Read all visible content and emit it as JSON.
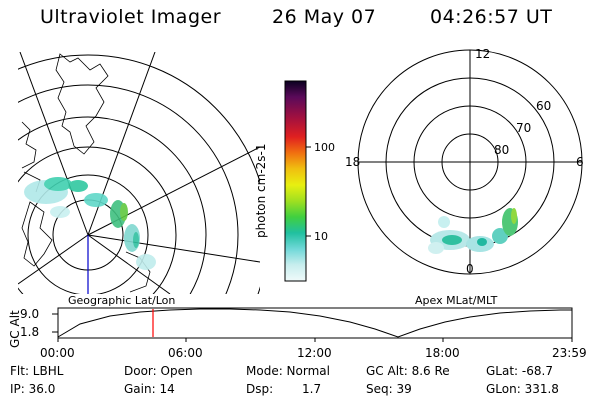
{
  "header": {
    "instrument": "Ultraviolet Imager",
    "date": "26 May 07",
    "time": "04:26:57 UT"
  },
  "left_panel": {
    "label": "Geographic Lat/Lon"
  },
  "right_panel": {
    "label": "Apex MLat/MLT",
    "mlt_labels": {
      "top": "12",
      "left": "18",
      "right": "6",
      "bottom": "0"
    },
    "lat_labels": [
      "60",
      "70",
      "80"
    ]
  },
  "colorbar": {
    "title": "photon cm-2s-1",
    "ticks": [
      "100",
      "10"
    ],
    "colors": [
      "#1a0a30",
      "#5a0a5a",
      "#8a1050",
      "#c01030",
      "#e03010",
      "#f08010",
      "#f0c010",
      "#e0f010",
      "#a0e020",
      "#40d040",
      "#20c0a0",
      "#60d8d8",
      "#c0eeee",
      "#e8f8f8"
    ]
  },
  "orbit": {
    "ylabel": "GC Alt",
    "yticks": [
      "9.0",
      "1.8"
    ],
    "xticks": [
      "00:00",
      "06:00",
      "12:00",
      "18:00",
      "23:59"
    ],
    "marker_color": "#ff0000"
  },
  "footer": {
    "flt": "Flt: LBHL",
    "door": "Door: Open",
    "mode": "Mode: Normal",
    "gc_alt": "GC Alt: 8.6 Re",
    "glat": "GLat: -68.7",
    "ip": "IP: 36.0",
    "gain": "Gain: 14",
    "dsp_label": "Dsp:",
    "dsp_value": "1.7",
    "seq": "Seq: 39",
    "glon": "GLon: 331.8"
  }
}
